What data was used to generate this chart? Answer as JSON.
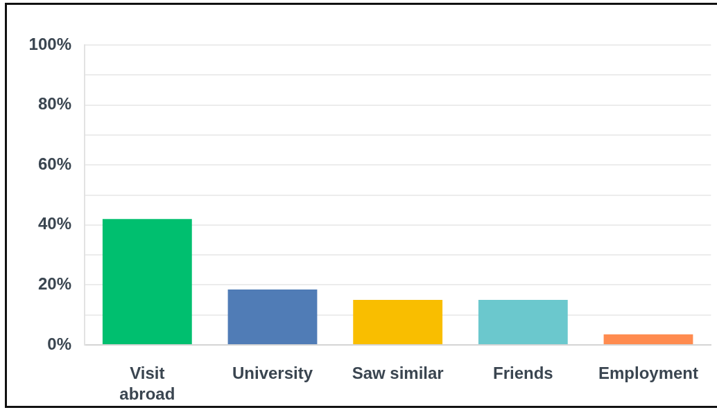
{
  "chart_data": {
    "type": "bar",
    "categories": [
      "Visit abroad",
      "University",
      "Saw similar",
      "Friends",
      "Employment"
    ],
    "values": [
      42,
      18.5,
      15,
      15,
      3.5
    ],
    "colors": [
      "#00bf6f",
      "#507cb6",
      "#f9be00",
      "#6bc8cd",
      "#ff8b4f"
    ],
    "ylim": [
      0,
      100
    ],
    "yticks": [
      {
        "value": 0,
        "label": "0%"
      },
      {
        "value": 10,
        "label": null
      },
      {
        "value": 20,
        "label": "20%"
      },
      {
        "value": 30,
        "label": null
      },
      {
        "value": 40,
        "label": "40%"
      },
      {
        "value": 50,
        "label": null
      },
      {
        "value": 60,
        "label": "60%"
      },
      {
        "value": 70,
        "label": null
      },
      {
        "value": 80,
        "label": "80%"
      },
      {
        "value": 90,
        "label": null
      },
      {
        "value": 100,
        "label": "100%"
      }
    ],
    "grid": "y"
  }
}
